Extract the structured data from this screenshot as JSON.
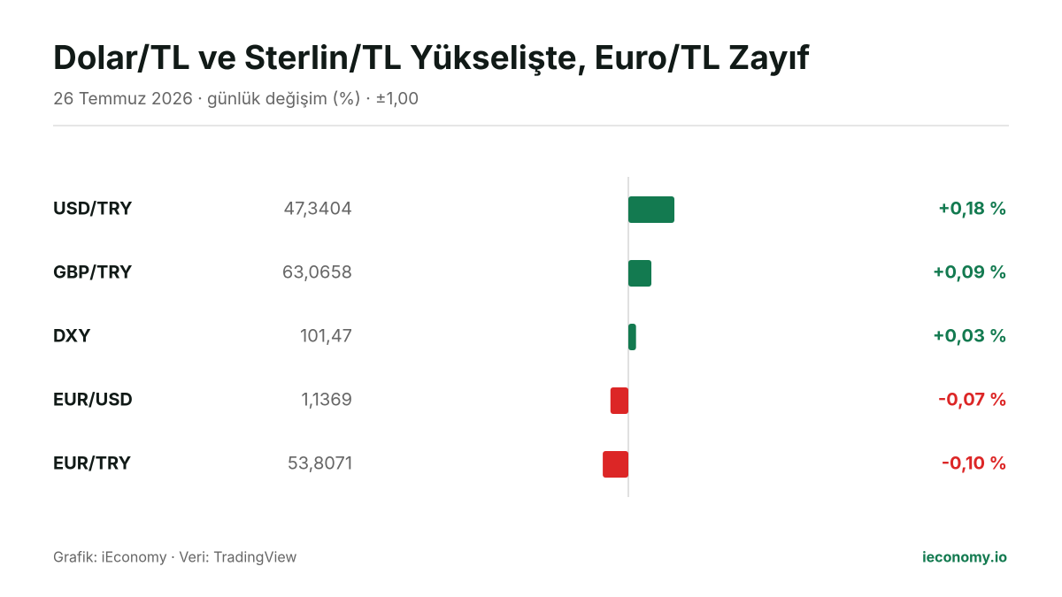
{
  "chart_data": {
    "type": "bar",
    "orientation": "horizontal",
    "title": "Dolar/TL ve Sterlin/TL Yükselişte, Euro/TL Zayıf",
    "subtitle": "26 Temmuz 2026 · günlük değişim (%) · ±1,00",
    "categories": [
      "USD/TRY",
      "GBP/TRY",
      "DXY",
      "EUR/USD",
      "EUR/TRY"
    ],
    "prices": [
      "47,3404",
      "63,0658",
      "101,47",
      "1,1369",
      "53,8071"
    ],
    "values": [
      0.18,
      0.09,
      0.03,
      -0.07,
      -0.1
    ],
    "value_labels": [
      "+0,18 %",
      "+0,09 %",
      "+0,03 %",
      "-0,07 %",
      "-0,10 %"
    ],
    "xlim": [
      -1,
      1
    ],
    "positive_color": "#137a50",
    "negative_color": "#dc2626",
    "footer": {
      "source": "Grafik: iEconomy · Veri: TradingView",
      "brand": "ieconomy.io"
    }
  }
}
